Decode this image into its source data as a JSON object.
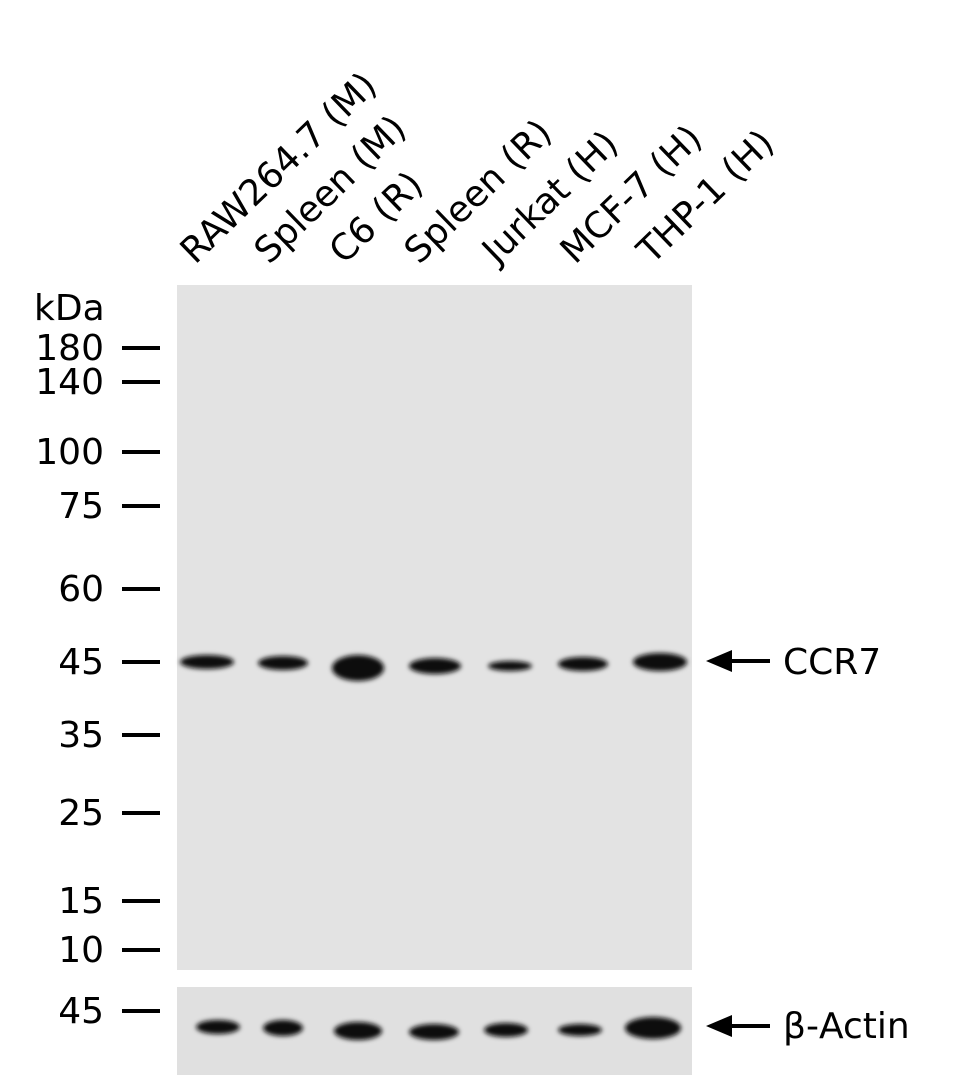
{
  "lanes": [
    "RAW264.7 (M)",
    "Spleen (M)",
    "C6 (R)",
    "Spleen (R)",
    "Jurkat (H)",
    "MCF-7 (H)",
    "THP-1 (H)"
  ],
  "marker_unit": "kDa",
  "markers": [
    180,
    140,
    100,
    75,
    60,
    45,
    35,
    25,
    15,
    10
  ],
  "loading_marker": 45,
  "target_label": "CCR7",
  "loading_label": "β-Actin"
}
